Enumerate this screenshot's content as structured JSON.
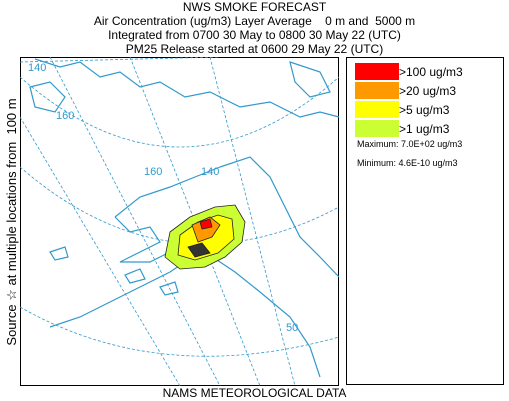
{
  "header": {
    "title": "NWS SMOKE FORECAST",
    "lines": [
      "Air Concentration (ug/m3) Layer Average    0 m and  5000 m",
      "Integrated from 0700 30 May to 0800 30 May 22 (UTC)",
      "PM25 Release started at 0600 29 May 22 (UTC)"
    ]
  },
  "side_label": "Source ☆ at multiple locations from  100 m",
  "map": {
    "grid_labels": [
      "140",
      "160",
      "160",
      "140",
      "50"
    ]
  },
  "legend": {
    "items": [
      {
        "label": ">100 ug/m3",
        "color": "#ff0000"
      },
      {
        "label": ">20 ug/m3",
        "color": "#ff9900"
      },
      {
        "label": ">5 ug/m3",
        "color": "#ffff00"
      },
      {
        "label": ">1 ug/m3",
        "color": "#ccff33"
      }
    ],
    "maximum": "Maximum: 7.0E+02 ug/m3",
    "minimum": "Minimum: 4.6E-10 ug/m3"
  },
  "footer": "NAMS METEOROLOGICAL DATA"
}
